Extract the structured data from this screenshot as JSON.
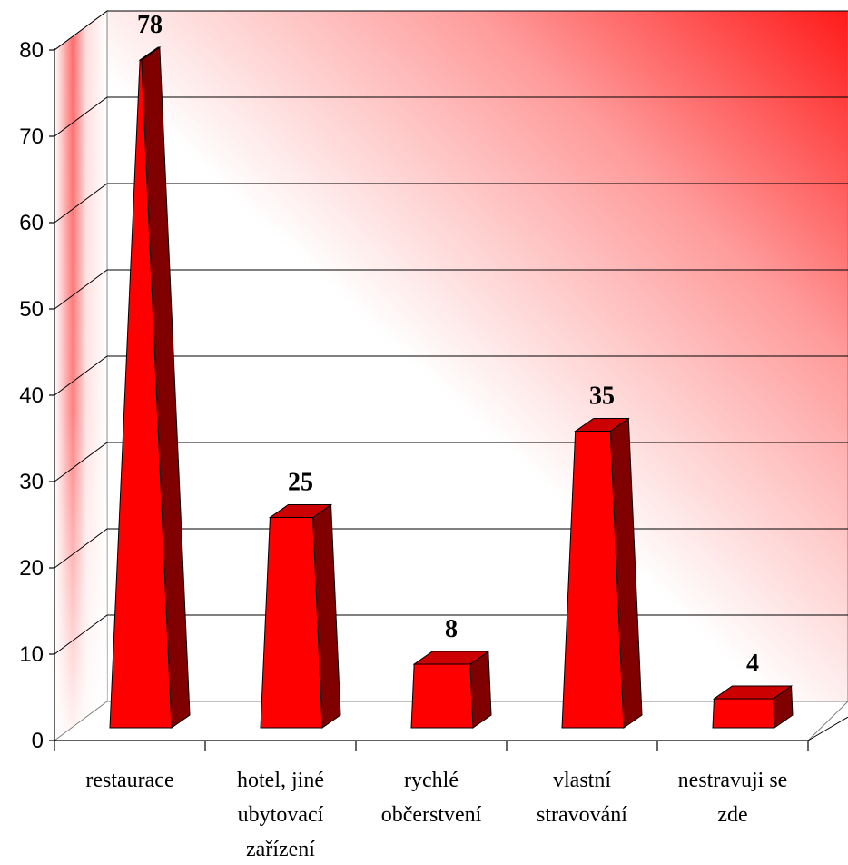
{
  "chart_data": {
    "type": "bar",
    "style": "3d-pyramid",
    "categories": [
      [
        "restaurace"
      ],
      [
        "hotel, jiné",
        "ubytovací",
        "zařízení"
      ],
      [
        "rychlé",
        "občerstvení"
      ],
      [
        "vlastní",
        "stravování"
      ],
      [
        "nestravuji se",
        "zde"
      ]
    ],
    "values": [
      78,
      25,
      8,
      35,
      4
    ],
    "ylim": [
      0,
      80
    ],
    "yticks": [
      0,
      10,
      20,
      30,
      40,
      50,
      60,
      70,
      80
    ],
    "grid": true,
    "legend": "none",
    "colors": {
      "bar_front": "#ff0000",
      "bar_side": "#800000",
      "bar_top": "#cc0000",
      "background_accent": "#ff2020"
    }
  }
}
